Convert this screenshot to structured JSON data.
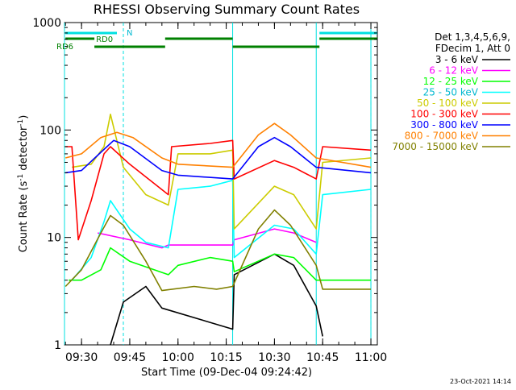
{
  "chart_data": {
    "type": "line",
    "title": "RHESSI Observing Summary Count Rates",
    "xlabel": "Start Time (09-Dec-04 09:24:42)",
    "ylabel_main": "Count Rate (s",
    "ylabel_sup1": "-1",
    "ylabel_mid": " detector",
    "ylabel_sup2": "-1",
    "ylabel_end": ")",
    "yscale": "log",
    "ylim": [
      1,
      1000
    ],
    "xlim": [
      "09:24:42",
      "11:02:00"
    ],
    "x_tick_labels": [
      "09:30",
      "09:45",
      "10:00",
      "10:15",
      "10:30",
      "10:45",
      "11:00"
    ],
    "y_tick_labels": [
      "1",
      "10",
      "100",
      "1000"
    ],
    "footer": "23-Oct-2021 14:14",
    "legend_header": [
      "Det 1,3,4,5,6,9,",
      "FDecim 1, Att 0"
    ],
    "state_labels": {
      "night": "N",
      "rd0": "RD0",
      "rd6": "RD6"
    },
    "vertical_markers": {
      "saa_cyan": [
        "09:24:42",
        "10:17:00",
        "10:43:00",
        "11:00:00"
      ],
      "dashed": [
        "09:43:00",
        "11:00:00"
      ]
    },
    "series": [
      {
        "name": "3 - 6 keV",
        "color": "#000000",
        "points": [
          [
            "09:39:00",
            1.0
          ],
          [
            "09:43:00",
            2.5
          ],
          [
            "09:50:00",
            3.5
          ],
          [
            "09:55:00",
            2.2
          ],
          [
            "10:17:00",
            1.4
          ],
          [
            "10:17:30",
            4.5
          ],
          [
            "10:30:00",
            7.0
          ],
          [
            "10:36:00",
            5.5
          ],
          [
            "10:43:00",
            2.3
          ],
          [
            "10:45:00",
            1.2
          ]
        ]
      },
      {
        "name": "6 - 12 keV",
        "color": "#ff00ff",
        "points": [
          [
            "09:35:00",
            11.0
          ],
          [
            "09:45:00",
            9.5
          ],
          [
            "09:55:00",
            8.0
          ],
          [
            "09:57:00",
            8.5
          ],
          [
            "10:05:00",
            8.5
          ],
          [
            "10:17:00",
            8.5
          ],
          [
            "10:17:30",
            9.5
          ],
          [
            "10:30:00",
            12.0
          ],
          [
            "10:36:00",
            11.0
          ],
          [
            "10:43:00",
            9.0
          ]
        ]
      },
      {
        "name": "12 - 25 keV",
        "color": "#00ff00",
        "points": [
          [
            "09:26:00",
            4.0
          ],
          [
            "09:30:00",
            4.0
          ],
          [
            "09:36:00",
            5.0
          ],
          [
            "09:39:00",
            8.0
          ],
          [
            "09:45:00",
            6.0
          ],
          [
            "09:57:00",
            4.5
          ],
          [
            "10:00:00",
            5.5
          ],
          [
            "10:10:00",
            6.5
          ],
          [
            "10:17:00",
            6.0
          ],
          [
            "10:17:30",
            4.8
          ],
          [
            "10:30:00",
            7.0
          ],
          [
            "10:36:00",
            6.5
          ],
          [
            "10:43:00",
            4.0
          ],
          [
            "10:50:00",
            4.0
          ],
          [
            "11:00:00",
            4.0
          ]
        ]
      },
      {
        "name": "25 - 50 keV",
        "color": "#00ffff",
        "points": [
          [
            "09:27:00",
            4.0
          ],
          [
            "09:33:00",
            6.5
          ],
          [
            "09:37:00",
            14.0
          ],
          [
            "09:39:00",
            22.0
          ],
          [
            "09:45:00",
            12.0
          ],
          [
            "09:50:00",
            9.0
          ],
          [
            "09:57:00",
            8.0
          ],
          [
            "10:00:00",
            28.0
          ],
          [
            "10:10:00",
            30.0
          ],
          [
            "10:17:00",
            34.0
          ],
          [
            "10:17:30",
            6.5
          ],
          [
            "10:30:00",
            13.0
          ],
          [
            "10:36:00",
            12.0
          ],
          [
            "10:43:00",
            7.0
          ],
          [
            "10:45:00",
            25.0
          ],
          [
            "11:00:00",
            28.0
          ]
        ]
      },
      {
        "name": "50 - 100 keV",
        "color": "#cccc00",
        "points": [
          [
            "09:27:00",
            45.0
          ],
          [
            "09:33:00",
            48.0
          ],
          [
            "09:37:00",
            70.0
          ],
          [
            "09:39:00",
            140.0
          ],
          [
            "09:43:00",
            45.0
          ],
          [
            "09:50:00",
            25.0
          ],
          [
            "09:57:00",
            20.0
          ],
          [
            "10:00:00",
            60.0
          ],
          [
            "10:10:00",
            60.0
          ],
          [
            "10:17:00",
            65.0
          ],
          [
            "10:17:30",
            12.0
          ],
          [
            "10:30:00",
            30.0
          ],
          [
            "10:36:00",
            25.0
          ],
          [
            "10:43:00",
            12.0
          ],
          [
            "10:45:00",
            50.0
          ],
          [
            "11:00:00",
            55.0
          ]
        ]
      },
      {
        "name": "100 - 300 keV",
        "color": "#ff0000",
        "points": [
          [
            "09:25:00",
            70.0
          ],
          [
            "09:27:00",
            70.0
          ],
          [
            "09:29:00",
            9.5
          ],
          [
            "09:33:00",
            22.0
          ],
          [
            "09:37:00",
            60.0
          ],
          [
            "09:39:00",
            70.0
          ],
          [
            "09:45:00",
            48.0
          ],
          [
            "09:57:00",
            25.0
          ],
          [
            "09:58:00",
            70.0
          ],
          [
            "10:10:00",
            75.0
          ],
          [
            "10:17:00",
            80.0
          ],
          [
            "10:17:30",
            35.0
          ],
          [
            "10:30:00",
            52.0
          ],
          [
            "10:36:00",
            45.0
          ],
          [
            "10:43:00",
            35.0
          ],
          [
            "10:45:00",
            70.0
          ],
          [
            "11:00:00",
            65.0
          ]
        ]
      },
      {
        "name": "300 - 800 keV",
        "color": "#0000ff",
        "points": [
          [
            "09:25:00",
            40.0
          ],
          [
            "09:30:00",
            42.0
          ],
          [
            "09:36:00",
            62.0
          ],
          [
            "09:40:00",
            80.0
          ],
          [
            "09:45:00",
            70.0
          ],
          [
            "09:55:00",
            42.0
          ],
          [
            "10:00:00",
            38.0
          ],
          [
            "10:17:00",
            35.0
          ],
          [
            "10:25:00",
            70.0
          ],
          [
            "10:30:00",
            85.0
          ],
          [
            "10:35:00",
            70.0
          ],
          [
            "10:43:00",
            45.0
          ],
          [
            "11:00:00",
            40.0
          ]
        ]
      },
      {
        "name": "800 - 7000 keV",
        "color": "#ff8000",
        "points": [
          [
            "09:25:00",
            55.0
          ],
          [
            "09:30:00",
            60.0
          ],
          [
            "09:36:00",
            85.0
          ],
          [
            "09:41:00",
            95.0
          ],
          [
            "09:46:00",
            85.0
          ],
          [
            "09:55:00",
            55.0
          ],
          [
            "10:00:00",
            48.0
          ],
          [
            "10:17:00",
            45.0
          ],
          [
            "10:25:00",
            90.0
          ],
          [
            "10:30:00",
            115.0
          ],
          [
            "10:35:00",
            90.0
          ],
          [
            "10:43:00",
            55.0
          ],
          [
            "11:00:00",
            45.0
          ]
        ]
      },
      {
        "name": "7000 - 15000 keV",
        "color": "#808000",
        "points": [
          [
            "09:25:00",
            3.5
          ],
          [
            "09:30:00",
            5.0
          ],
          [
            "09:36:00",
            11.0
          ],
          [
            "09:39:00",
            16.0
          ],
          [
            "09:43:00",
            13.0
          ],
          [
            "09:50:00",
            6.0
          ],
          [
            "09:55:00",
            3.2
          ],
          [
            "10:05:00",
            3.5
          ],
          [
            "10:12:00",
            3.3
          ],
          [
            "10:17:00",
            3.5
          ],
          [
            "10:25:00",
            12.0
          ],
          [
            "10:30:00",
            18.0
          ],
          [
            "10:35:00",
            13.0
          ],
          [
            "10:43:00",
            5.5
          ],
          [
            "10:45:00",
            3.3
          ],
          [
            "11:00:00",
            3.3
          ]
        ]
      }
    ]
  }
}
